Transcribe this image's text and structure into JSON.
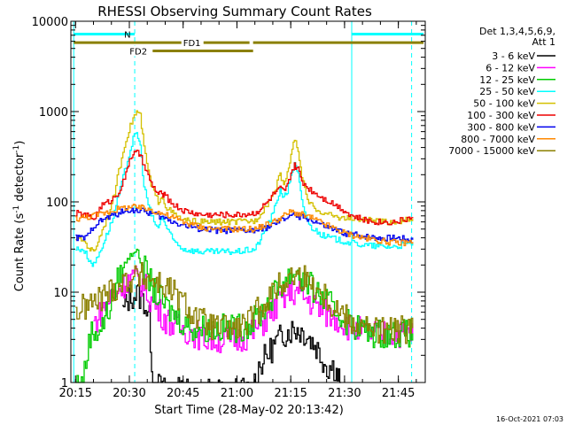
{
  "chart_data": {
    "type": "line",
    "title": "RHESSI Observing Summary Count Rates",
    "xlabel": "Start Time (28-May-02 20:13:42)",
    "ylabel": "Count Rate (s⁻¹ detector⁻¹)",
    "ylabel_parts": {
      "main": "Count Rate (s",
      "sup1": "-1",
      "mid": " detector",
      "sup2": "-1",
      "end": ")"
    },
    "timestamp": "16-Oct-2021 07:03",
    "yscale": "log",
    "xlim_minutes": [
      13.7,
      112.5
    ],
    "ylim": [
      1,
      10000
    ],
    "x_ticks": [
      {
        "t": 15,
        "label": "20:15"
      },
      {
        "t": 30,
        "label": "20:30"
      },
      {
        "t": 45,
        "label": "20:45"
      },
      {
        "t": 60,
        "label": "21:00"
      },
      {
        "t": 75,
        "label": "21:15"
      },
      {
        "t": 90,
        "label": "21:30"
      },
      {
        "t": 105,
        "label": "21:45"
      }
    ],
    "y_ticks": [
      {
        "v": 1,
        "label": "1"
      },
      {
        "v": 10,
        "label": "10"
      },
      {
        "v": 100,
        "label": "100"
      },
      {
        "v": 1000,
        "label": "1000"
      },
      {
        "v": 10000,
        "label": "10000"
      }
    ],
    "legend": {
      "header": [
        "Det 1,3,4,5,6,9,",
        "Att 1"
      ],
      "placement": "right"
    },
    "vertical_markers": [
      {
        "t": 14.5,
        "color": "#00ffff",
        "style": "solid"
      },
      {
        "t": 31.5,
        "color": "#00ffff",
        "style": "dashed"
      },
      {
        "t": 92.0,
        "color": "#00ffff",
        "style": "solid"
      },
      {
        "t": 108.7,
        "color": "#00ffff",
        "style": "dashed"
      }
    ],
    "state_bars": [
      {
        "label": "N",
        "color": "#00ffff",
        "value": 7200,
        "segments": [
          [
            14.5,
            31.5
          ],
          [
            92.0,
            112.0
          ]
        ]
      },
      {
        "label": "FD1",
        "color": "#8b8000",
        "value": 5800,
        "segments": [
          [
            14.5,
            63.5
          ],
          [
            64.5,
            112.0
          ]
        ]
      },
      {
        "label": "FD2",
        "color": "#8b8000",
        "value": 4700,
        "segments": [
          [
            36.5,
            64.5
          ]
        ]
      }
    ],
    "series": [
      {
        "name": "3 - 6 keV",
        "color": "#000000",
        "x": [
          28,
          30,
          32,
          34,
          35.5,
          36.5,
          40,
          44,
          48,
          52,
          56,
          60,
          62,
          64,
          66,
          70,
          73,
          76,
          79,
          82,
          85,
          87,
          88,
          89
        ],
        "y": [
          6,
          9,
          9.5,
          8,
          5,
          1,
          0.8,
          0.8,
          0.8,
          0.8,
          0.8,
          0.8,
          0.8,
          0.8,
          1.5,
          2.5,
          3.5,
          4,
          3.5,
          2.5,
          1.5,
          1.5,
          1.2,
          1
        ]
      },
      {
        "name": "6 - 12 keV",
        "color": "#ff00ff",
        "x": [
          20,
          24,
          27,
          30,
          32,
          34,
          36,
          40,
          44,
          48,
          52,
          56,
          60,
          64,
          68,
          72,
          75,
          77,
          80,
          84,
          88,
          92,
          96,
          100,
          104,
          108,
          109
        ],
        "y": [
          4.5,
          8,
          11,
          14,
          14,
          12,
          8,
          5,
          4,
          3.5,
          3,
          3,
          3,
          3.5,
          5,
          8,
          10,
          10,
          8,
          6,
          5,
          4,
          3.5,
          3.5,
          3.5,
          3.5,
          3.5
        ]
      },
      {
        "name": "12 - 25 keV",
        "color": "#00cc00",
        "x": [
          15,
          17,
          19,
          22,
          25,
          27,
          29,
          31,
          32,
          33,
          35,
          37,
          40,
          44,
          48,
          52,
          56,
          60,
          64,
          68,
          72,
          75,
          76.5,
          78,
          82,
          86,
          90,
          94,
          98,
          102,
          106,
          109
        ],
        "y": [
          1,
          1,
          3.5,
          4,
          8,
          15,
          22,
          28,
          30,
          22,
          15,
          10,
          7,
          5,
          4,
          4,
          4,
          4,
          4.5,
          7,
          12,
          16,
          18,
          14,
          10,
          7,
          5,
          4,
          3.5,
          3.5,
          3.5,
          3.5
        ]
      },
      {
        "name": "25 - 50 keV",
        "color": "#00ffff",
        "x": [
          15,
          17,
          19,
          20,
          22,
          25,
          27,
          29,
          31,
          32,
          33,
          34,
          36,
          38,
          39,
          40,
          42,
          45,
          50,
          55,
          60,
          65,
          68,
          70,
          72,
          73,
          74,
          75,
          76,
          77,
          78,
          80,
          84,
          88,
          92,
          96,
          100,
          104,
          109
        ],
        "y": [
          30,
          30,
          22,
          20,
          30,
          60,
          120,
          250,
          500,
          580,
          420,
          150,
          70,
          50,
          70,
          55,
          38,
          30,
          28,
          28,
          28,
          30,
          50,
          75,
          140,
          110,
          130,
          200,
          260,
          200,
          100,
          55,
          42,
          38,
          35,
          33,
          32,
          32,
          35
        ]
      },
      {
        "name": "50 - 100 keV",
        "color": "#d4c000",
        "x": [
          15,
          17,
          19,
          20,
          22,
          25,
          27,
          29,
          31,
          32,
          33,
          34,
          36,
          38,
          39,
          40,
          42,
          45,
          50,
          55,
          60,
          65,
          68,
          70,
          72,
          73,
          74,
          75,
          76,
          77,
          78,
          80,
          84,
          88,
          92,
          96,
          100,
          104,
          109
        ],
        "y": [
          40,
          38,
          30,
          28,
          45,
          90,
          220,
          500,
          850,
          1000,
          900,
          400,
          150,
          100,
          120,
          90,
          75,
          62,
          60,
          60,
          60,
          62,
          90,
          120,
          200,
          160,
          200,
          350,
          480,
          380,
          180,
          95,
          75,
          68,
          65,
          63,
          60,
          60,
          65
        ]
      },
      {
        "name": "100 - 300 keV",
        "color": "#ee0000",
        "x": [
          15,
          17,
          19,
          20,
          22,
          25,
          27,
          29,
          30,
          31,
          32,
          33,
          34,
          36,
          38,
          39,
          40,
          42,
          45,
          50,
          55,
          60,
          65,
          68,
          70,
          72,
          73,
          74,
          75,
          76,
          77,
          78,
          80,
          84,
          88,
          90,
          92,
          96,
          100,
          104,
          109
        ],
        "y": [
          75,
          72,
          68,
          65,
          90,
          105,
          130,
          200,
          300,
          340,
          350,
          330,
          250,
          160,
          120,
          125,
          115,
          95,
          80,
          72,
          72,
          72,
          75,
          95,
          120,
          140,
          130,
          150,
          210,
          250,
          230,
          170,
          140,
          110,
          90,
          80,
          70,
          62,
          60,
          60,
          68
        ]
      },
      {
        "name": "300 - 800 keV",
        "color": "#0000ee",
        "x": [
          15,
          18,
          20,
          23,
          27,
          30,
          33,
          36,
          40,
          45,
          50,
          55,
          60,
          65,
          70,
          75,
          80,
          85,
          90,
          95,
          100,
          105,
          109
        ],
        "y": [
          40,
          40,
          55,
          65,
          75,
          82,
          80,
          75,
          65,
          55,
          50,
          48,
          48,
          48,
          55,
          72,
          65,
          52,
          45,
          42,
          40,
          40,
          38
        ]
      },
      {
        "name": "800 - 7000 keV",
        "color": "#ff8800",
        "x": [
          15,
          18,
          21,
          24,
          27,
          30,
          33,
          36,
          40,
          45,
          50,
          55,
          60,
          65,
          70,
          75,
          80,
          85,
          90,
          95,
          100,
          105,
          109
        ],
        "y": [
          65,
          68,
          72,
          78,
          84,
          88,
          86,
          82,
          72,
          60,
          52,
          50,
          50,
          50,
          60,
          78,
          68,
          55,
          45,
          40,
          37,
          35,
          36
        ]
      },
      {
        "name": "7000 - 15000 keV",
        "color": "#8b8000",
        "x": [
          15,
          18,
          21,
          24,
          27,
          30,
          33,
          36,
          39,
          42,
          45,
          48,
          51,
          54,
          57,
          60,
          63,
          66,
          69,
          72,
          75,
          78,
          81,
          84,
          87,
          90,
          93,
          96,
          99,
          102,
          105,
          109
        ],
        "y": [
          6,
          7,
          8,
          10,
          12,
          14,
          15,
          14,
          12,
          10,
          7.5,
          5.5,
          4.5,
          4,
          4,
          4,
          4.5,
          6.5,
          9,
          12,
          15,
          15,
          12,
          9.5,
          7,
          5.5,
          4.5,
          4,
          3.8,
          3.7,
          3.8,
          4
        ]
      }
    ]
  }
}
